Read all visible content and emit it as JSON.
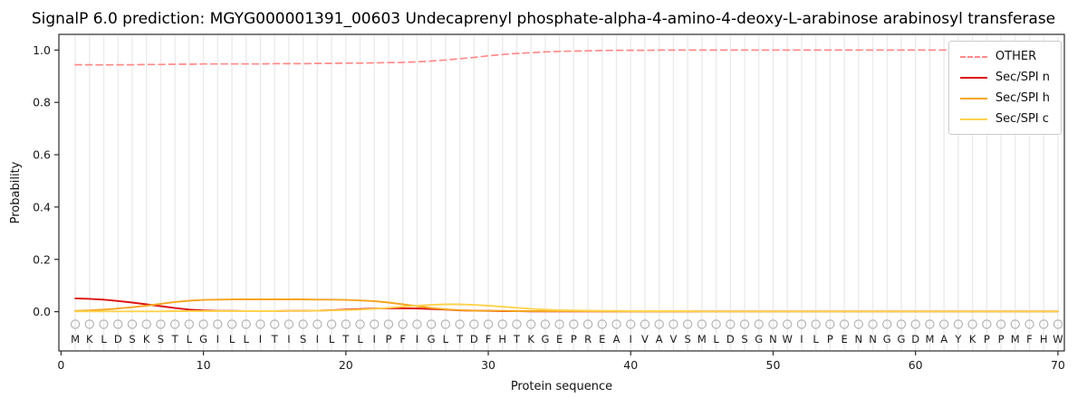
{
  "title": "SignalP 6.0 prediction: MGYG000001391_00603 Undecaprenyl phosphate-alpha-4-amino-4-deoxy-L-arabinose arabinosyl transferase",
  "chart_data": {
    "type": "line",
    "title": "SignalP 6.0 prediction: MGYG000001391_00603 Undecaprenyl phosphate-alpha-4-amino-4-deoxy-L-arabinose arabinosyl transferase",
    "xlabel": "Protein sequence",
    "ylabel": "Probability",
    "xlim": [
      0,
      70
    ],
    "ylim": [
      0,
      1
    ],
    "xticks": [
      0,
      10,
      20,
      30,
      40,
      50,
      60,
      70
    ],
    "yticks": [
      0.0,
      0.2,
      0.4,
      0.6,
      0.8,
      1.0
    ],
    "grid": "vertical-per-position",
    "legend_position": "top-right",
    "x_start": 1,
    "sequence": "MKLDSKSTLGILLITISILTLIPFIGLTDFHTKGEPREAIVAVSMLDSGNWILPENNGGDMAYKPPMFHW",
    "marker_symbol": "O",
    "marker_color": "#b3b3b3",
    "series": [
      {
        "name": "OTHER",
        "color": "#ff8a8a",
        "dash": true,
        "values": [
          0.944,
          0.944,
          0.943,
          0.944,
          0.944,
          0.945,
          0.945,
          0.946,
          0.946,
          0.947,
          0.947,
          0.947,
          0.947,
          0.947,
          0.948,
          0.948,
          0.948,
          0.949,
          0.949,
          0.95,
          0.95,
          0.951,
          0.952,
          0.953,
          0.955,
          0.958,
          0.962,
          0.967,
          0.972,
          0.978,
          0.983,
          0.987,
          0.99,
          0.993,
          0.995,
          0.996,
          0.997,
          0.998,
          0.999,
          0.999,
          0.999,
          1.0,
          1.0,
          1.0,
          1.0,
          1.0,
          1.0,
          1.0,
          1.0,
          1.0,
          1.0,
          1.0,
          1.0,
          1.0,
          1.0,
          1.0,
          1.0,
          1.0,
          1.0,
          1.0,
          1.0,
          1.0,
          1.0,
          1.0,
          1.0,
          1.0,
          1.0,
          1.0,
          1.0,
          1.0
        ]
      },
      {
        "name": "Sec/SPI n",
        "color": "#dd1111",
        "dash": false,
        "values": [
          0.051,
          0.049,
          0.046,
          0.041,
          0.035,
          0.028,
          0.021,
          0.014,
          0.008,
          0.005,
          0.003,
          0.003,
          0.002,
          0.002,
          0.002,
          0.003,
          0.003,
          0.004,
          0.006,
          0.008,
          0.01,
          0.012,
          0.013,
          0.013,
          0.012,
          0.01,
          0.008,
          0.005,
          0.004,
          0.003,
          0.002,
          0.002,
          0.001,
          0.001,
          0.001,
          0.001,
          0.001,
          0.001,
          0.001,
          0.001,
          0.001,
          0.001,
          0.001,
          0.001,
          0.001,
          0.001,
          0.001,
          0.001,
          0.001,
          0.001,
          0.001,
          0.001,
          0.001,
          0.001,
          0.001,
          0.001,
          0.001,
          0.001,
          0.001,
          0.001,
          0.001,
          0.001,
          0.001,
          0.001,
          0.001,
          0.001,
          0.001,
          0.001,
          0.001,
          0.001
        ]
      },
      {
        "name": "Sec/SPI h",
        "color": "#f5a522",
        "dash": false,
        "values": [
          0.003,
          0.005,
          0.008,
          0.012,
          0.017,
          0.023,
          0.03,
          0.037,
          0.042,
          0.045,
          0.046,
          0.047,
          0.047,
          0.047,
          0.047,
          0.047,
          0.047,
          0.046,
          0.046,
          0.045,
          0.043,
          0.04,
          0.035,
          0.028,
          0.021,
          0.014,
          0.009,
          0.006,
          0.004,
          0.003,
          0.003,
          0.002,
          0.002,
          0.002,
          0.002,
          0.002,
          0.002,
          0.001,
          0.001,
          0.001,
          0.001,
          0.001,
          0.001,
          0.001,
          0.001,
          0.001,
          0.001,
          0.001,
          0.001,
          0.001,
          0.001,
          0.001,
          0.001,
          0.001,
          0.001,
          0.001,
          0.001,
          0.001,
          0.001,
          0.001,
          0.001,
          0.001,
          0.001,
          0.001,
          0.001,
          0.001,
          0.001,
          0.001,
          0.001,
          0.001
        ]
      },
      {
        "name": "Sec/SPI c",
        "color": "#ffd24d",
        "dash": false,
        "values": [
          0.001,
          0.001,
          0.001,
          0.001,
          0.001,
          0.001,
          0.001,
          0.002,
          0.002,
          0.002,
          0.002,
          0.002,
          0.002,
          0.002,
          0.002,
          0.003,
          0.003,
          0.004,
          0.005,
          0.006,
          0.008,
          0.011,
          0.015,
          0.019,
          0.023,
          0.026,
          0.028,
          0.028,
          0.026,
          0.023,
          0.019,
          0.015,
          0.011,
          0.008,
          0.006,
          0.005,
          0.004,
          0.003,
          0.003,
          0.002,
          0.002,
          0.002,
          0.002,
          0.002,
          0.001,
          0.001,
          0.001,
          0.001,
          0.001,
          0.001,
          0.001,
          0.001,
          0.001,
          0.001,
          0.001,
          0.001,
          0.001,
          0.001,
          0.001,
          0.001,
          0.001,
          0.001,
          0.001,
          0.001,
          0.001,
          0.001,
          0.001,
          0.001,
          0.001,
          0.001
        ]
      }
    ]
  }
}
